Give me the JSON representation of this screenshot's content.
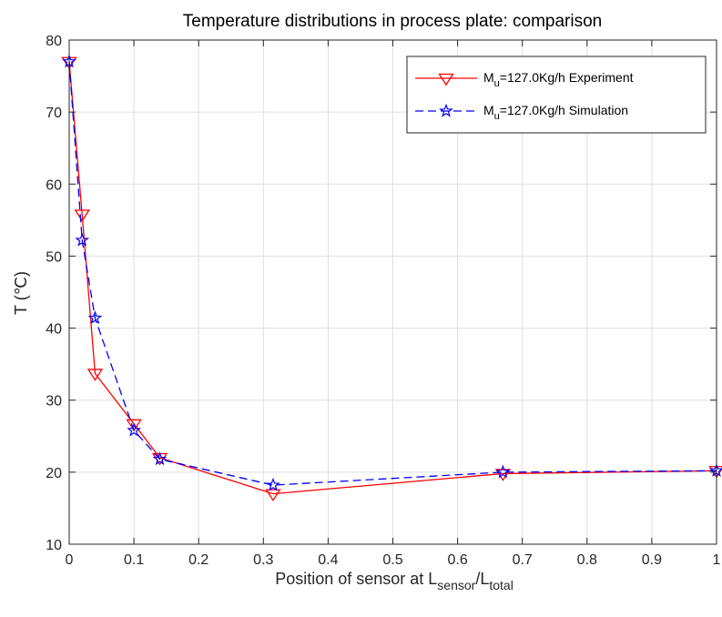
{
  "chart_data": {
    "type": "line",
    "title": "Temperature distributions in process plate: comparison",
    "xlabel": {
      "prefix": "Position of sensor at L",
      "sub1": "sensor",
      "slash": "/L",
      "sub2": "total"
    },
    "ylabel": "T (℃)",
    "xlim": [
      0,
      1
    ],
    "ylim": [
      10,
      80
    ],
    "xticks": [
      0,
      0.1,
      0.2,
      0.3,
      0.4,
      0.5,
      0.6,
      0.7,
      0.8,
      0.9,
      1
    ],
    "xtick_labels": [
      "0",
      "0.1",
      "0.2",
      "0.3",
      "0.4",
      "0.5",
      "0.6",
      "0.7",
      "0.8",
      "0.9",
      "1"
    ],
    "yticks": [
      10,
      20,
      30,
      40,
      50,
      60,
      70,
      80
    ],
    "ytick_labels": [
      "10",
      "20",
      "30",
      "40",
      "50",
      "60",
      "70",
      "80"
    ],
    "grid": true,
    "legend_position": "top-right",
    "series": [
      {
        "legend": {
          "prefix": "M",
          "sub": "u",
          "suffix": "=127.0Kg/h Experiment"
        },
        "color": "#ff0000",
        "line_style": "solid",
        "marker": "triangle-down",
        "x": [
          0.0,
          0.02,
          0.04,
          0.1,
          0.14,
          0.315,
          0.67,
          1.0
        ],
        "y": [
          77.0,
          55.8,
          33.7,
          26.7,
          22.0,
          17.0,
          19.8,
          20.2
        ]
      },
      {
        "legend": {
          "prefix": "M",
          "sub": "u",
          "suffix": "=127.0Kg/h Simulation"
        },
        "color": "#0000ff",
        "line_style": "dashed",
        "marker": "pentagram",
        "x": [
          0.0,
          0.02,
          0.04,
          0.1,
          0.14,
          0.315,
          0.67,
          1.0
        ],
        "y": [
          77.0,
          52.2,
          41.4,
          25.8,
          21.8,
          18.2,
          20.0,
          20.2
        ]
      }
    ]
  }
}
